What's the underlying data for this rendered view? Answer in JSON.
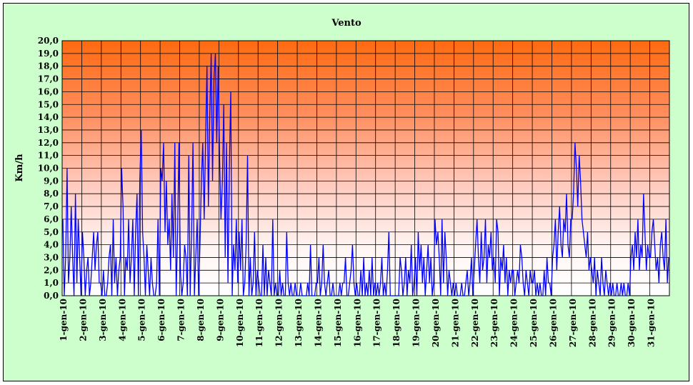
{
  "chart_data": {
    "type": "line",
    "title": "Vento",
    "ylabel": "Km/h",
    "xlabel": "",
    "ylim": [
      0,
      20
    ],
    "y_ticks": [
      "0,0",
      "1,0",
      "2,0",
      "3,0",
      "4,0",
      "5,0",
      "6,0",
      "7,0",
      "8,0",
      "9,0",
      "10,0",
      "11,0",
      "12,0",
      "13,0",
      "14,0",
      "15,0",
      "16,0",
      "17,0",
      "18,0",
      "19,0",
      "20,0"
    ],
    "categories": [
      "1-gen-10",
      "2-gen-10",
      "3-gen-10",
      "4-gen-10",
      "5-gen-10",
      "6-gen-10",
      "7-gen-10",
      "8-gen-10",
      "9-gen-10",
      "10-gen-10",
      "11-gen-10",
      "12-gen-10",
      "13-gen-10",
      "14-gen-10",
      "15-gen-10",
      "16-gen-10",
      "17-gen-10",
      "18-gen-10",
      "19-gen-10",
      "20-gen-10",
      "21-gen-10",
      "22-gen-10",
      "23-gen-10",
      "24-gen-10",
      "25-gen-10",
      "26-gen-10",
      "27-gen-10",
      "28-gen-10",
      "29-gen-10",
      "30-gen-10",
      "31-gen-10"
    ],
    "grid": true,
    "series": [
      {
        "color": "#0000ff",
        "values_by_day": [
          [
            6,
            0,
            3,
            10,
            1,
            3,
            7,
            3,
            0,
            8,
            1,
            6,
            3,
            0
          ],
          [
            5,
            3,
            0,
            2,
            3,
            0,
            1,
            3,
            5,
            2,
            4,
            5,
            1,
            1
          ],
          [
            0,
            2,
            0,
            0,
            1,
            3,
            4,
            0,
            6,
            1,
            3,
            0,
            2,
            3
          ],
          [
            10,
            7,
            0,
            3,
            2,
            6,
            1,
            3,
            6,
            0,
            5,
            8,
            0,
            9
          ],
          [
            13,
            5,
            3,
            0,
            4,
            2,
            0,
            3,
            1,
            0,
            0,
            1,
            6,
            0
          ],
          [
            10,
            9,
            12,
            5,
            9,
            4,
            6,
            2,
            8,
            3,
            12,
            0,
            5,
            12
          ],
          [
            2,
            0,
            1,
            4,
            3,
            0,
            11,
            0,
            5,
            12,
            0,
            3,
            6,
            0
          ],
          [
            4,
            9,
            12,
            6,
            12,
            18,
            7,
            14,
            19,
            9,
            17,
            19,
            12,
            18
          ],
          [
            11,
            6,
            9,
            15,
            3,
            12,
            1,
            10,
            16,
            0,
            4,
            2,
            6,
            1
          ],
          [
            5,
            2,
            6,
            0,
            1,
            4,
            11,
            0,
            3,
            0,
            1,
            5,
            0,
            2
          ],
          [
            1,
            0,
            0,
            4,
            0,
            3,
            0,
            2,
            1,
            0,
            6,
            0,
            1,
            0
          ],
          [
            0,
            2,
            0,
            1,
            0,
            0,
            5,
            1,
            0,
            1,
            0,
            0,
            1,
            0
          ],
          [
            0,
            0,
            1,
            0,
            0,
            0,
            0,
            1,
            0,
            4,
            0,
            0,
            0,
            1
          ],
          [
            1,
            3,
            0,
            1,
            4,
            1,
            0,
            1,
            2,
            0,
            0,
            1,
            0,
            0
          ],
          [
            0,
            0,
            1,
            0,
            1,
            1,
            3,
            0,
            0,
            1,
            2,
            4,
            1,
            0
          ],
          [
            1,
            0,
            0,
            2,
            0,
            3,
            0,
            1,
            0,
            2,
            0,
            3,
            0,
            1
          ],
          [
            0,
            1,
            0,
            1,
            3,
            0,
            1,
            0,
            2,
            5,
            0,
            0,
            0,
            0
          ],
          [
            0,
            0,
            0,
            3,
            2,
            0,
            1,
            3,
            0,
            2,
            1,
            4,
            0,
            1
          ],
          [
            3,
            0,
            5,
            2,
            4,
            1,
            3,
            0,
            2,
            4,
            1,
            3,
            0,
            1
          ],
          [
            6,
            4,
            5,
            3,
            0,
            6,
            1,
            5,
            3,
            0,
            2,
            1,
            0,
            1
          ],
          [
            0,
            1,
            0,
            0,
            0,
            1,
            0,
            0,
            1,
            2,
            0,
            1,
            3,
            0
          ],
          [
            2,
            4,
            6,
            3,
            1,
            5,
            2,
            3,
            6,
            1,
            4,
            3,
            5,
            2
          ],
          [
            3,
            1,
            6,
            5,
            0,
            3,
            2,
            4,
            1,
            3,
            0,
            2,
            1,
            2
          ],
          [
            2,
            0,
            1,
            2,
            1,
            4,
            3,
            1,
            0,
            2,
            1,
            0,
            2,
            1
          ],
          [
            1,
            2,
            0,
            1,
            0,
            1,
            0,
            0,
            2,
            0,
            3,
            1,
            1,
            0
          ],
          [
            3,
            4,
            6,
            2,
            5,
            7,
            4,
            3,
            6,
            5,
            8,
            4,
            3,
            6
          ],
          [
            6,
            8,
            12,
            10,
            7,
            11,
            9,
            6,
            5,
            4,
            3,
            5,
            2,
            3
          ],
          [
            2,
            1,
            3,
            0,
            2,
            1,
            0,
            3,
            1,
            0,
            2,
            1,
            0,
            1
          ],
          [
            0,
            1,
            0,
            0,
            1,
            0,
            0,
            1,
            0,
            1,
            0,
            0,
            1,
            0
          ],
          [
            3,
            4,
            2,
            5,
            3,
            6,
            2,
            4,
            3,
            8,
            5,
            2,
            4,
            3
          ],
          [
            3,
            5,
            6,
            4,
            2,
            3,
            1,
            4,
            5,
            3,
            2,
            6,
            1,
            3
          ]
        ]
      }
    ]
  }
}
